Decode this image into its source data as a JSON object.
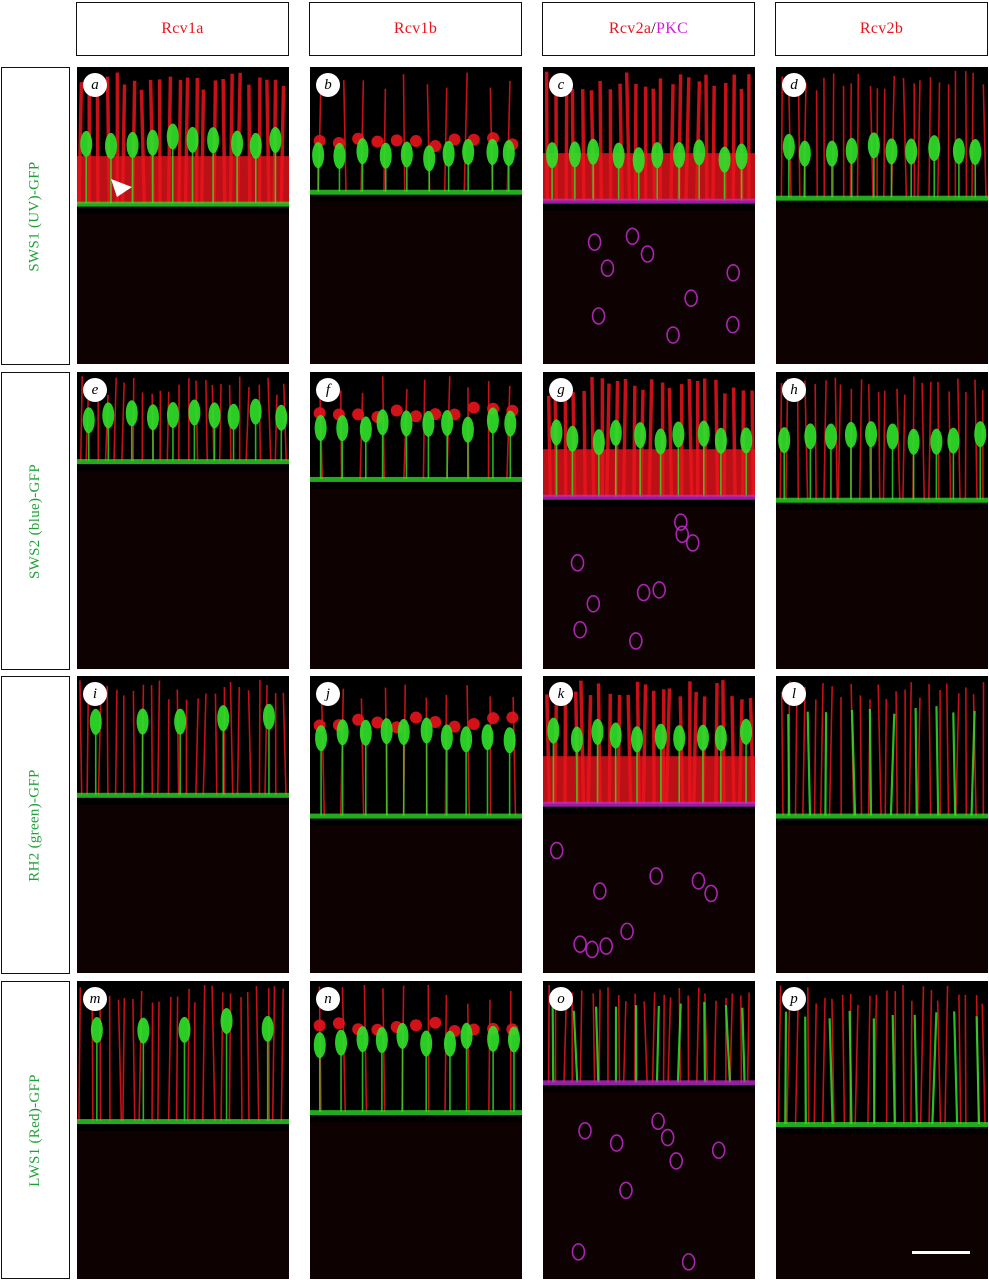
{
  "columns": [
    {
      "parts": [
        {
          "text": "Rcv1a",
          "color": "#e8141c"
        }
      ]
    },
    {
      "parts": [
        {
          "text": "Rcv1b",
          "color": "#e8141c"
        }
      ]
    },
    {
      "parts": [
        {
          "text": "Rcv2a",
          "color": "#e8141c"
        },
        {
          "text": "/",
          "color": "#111111"
        },
        {
          "text": "PKC",
          "color": "#d21dd8"
        }
      ]
    },
    {
      "parts": [
        {
          "text": "Rcv2b",
          "color": "#e8141c"
        }
      ]
    }
  ],
  "rows": [
    {
      "label": "SWS1 (UV)-GFP"
    },
    {
      "label": "SWS2 (blue)-GFP"
    },
    {
      "label": "RH2 (green)-GFP"
    },
    {
      "label": "LWS1 (Red)-GFP"
    }
  ],
  "panels": [
    "a",
    "b",
    "c",
    "d",
    "e",
    "f",
    "g",
    "h",
    "i",
    "j",
    "k",
    "l",
    "m",
    "n",
    "o",
    "p"
  ],
  "colors": {
    "red_channel": "#e8141c",
    "gfp_channel": "#2fe32a",
    "pkc_channel": "#c42bd1",
    "label_text": "#1fa13a"
  },
  "annotations": {
    "arrowhead_panel": "a",
    "scale_bar_panel": "p"
  }
}
